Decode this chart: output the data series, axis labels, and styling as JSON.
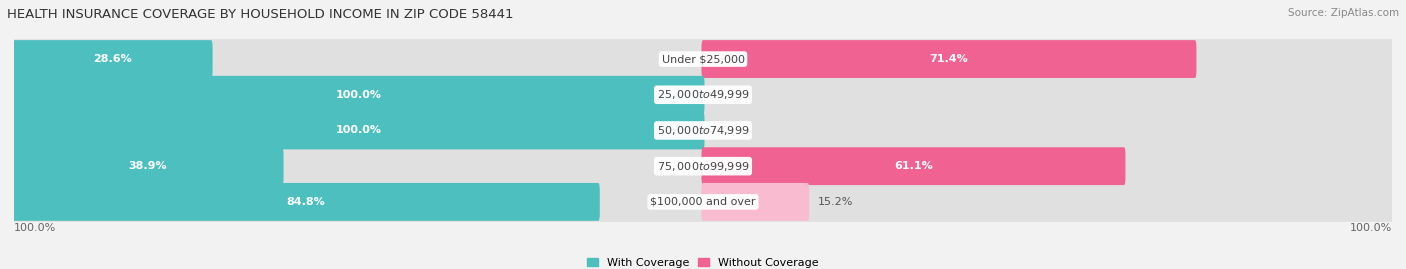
{
  "title": "HEALTH INSURANCE COVERAGE BY HOUSEHOLD INCOME IN ZIP CODE 58441",
  "source": "Source: ZipAtlas.com",
  "categories": [
    "Under $25,000",
    "$25,000 to $49,999",
    "$50,000 to $74,999",
    "$75,000 to $99,999",
    "$100,000 and over"
  ],
  "with_coverage": [
    28.6,
    100.0,
    100.0,
    38.9,
    84.8
  ],
  "without_coverage": [
    71.4,
    0.0,
    0.0,
    61.1,
    15.2
  ],
  "color_with": "#4dbfbf",
  "color_without": "#f06292",
  "color_without_light": "#f8bbd0",
  "bg_color": "#f2f2f2",
  "bar_bg_color": "#e0e0e0",
  "bar_height": 0.62,
  "x_left_label": "100.0%",
  "x_right_label": "100.0%",
  "legend_with": "With Coverage",
  "legend_without": "Without Coverage",
  "title_fontsize": 9.5,
  "label_fontsize": 8,
  "category_fontsize": 8,
  "value_fontsize": 8,
  "source_fontsize": 7.5
}
